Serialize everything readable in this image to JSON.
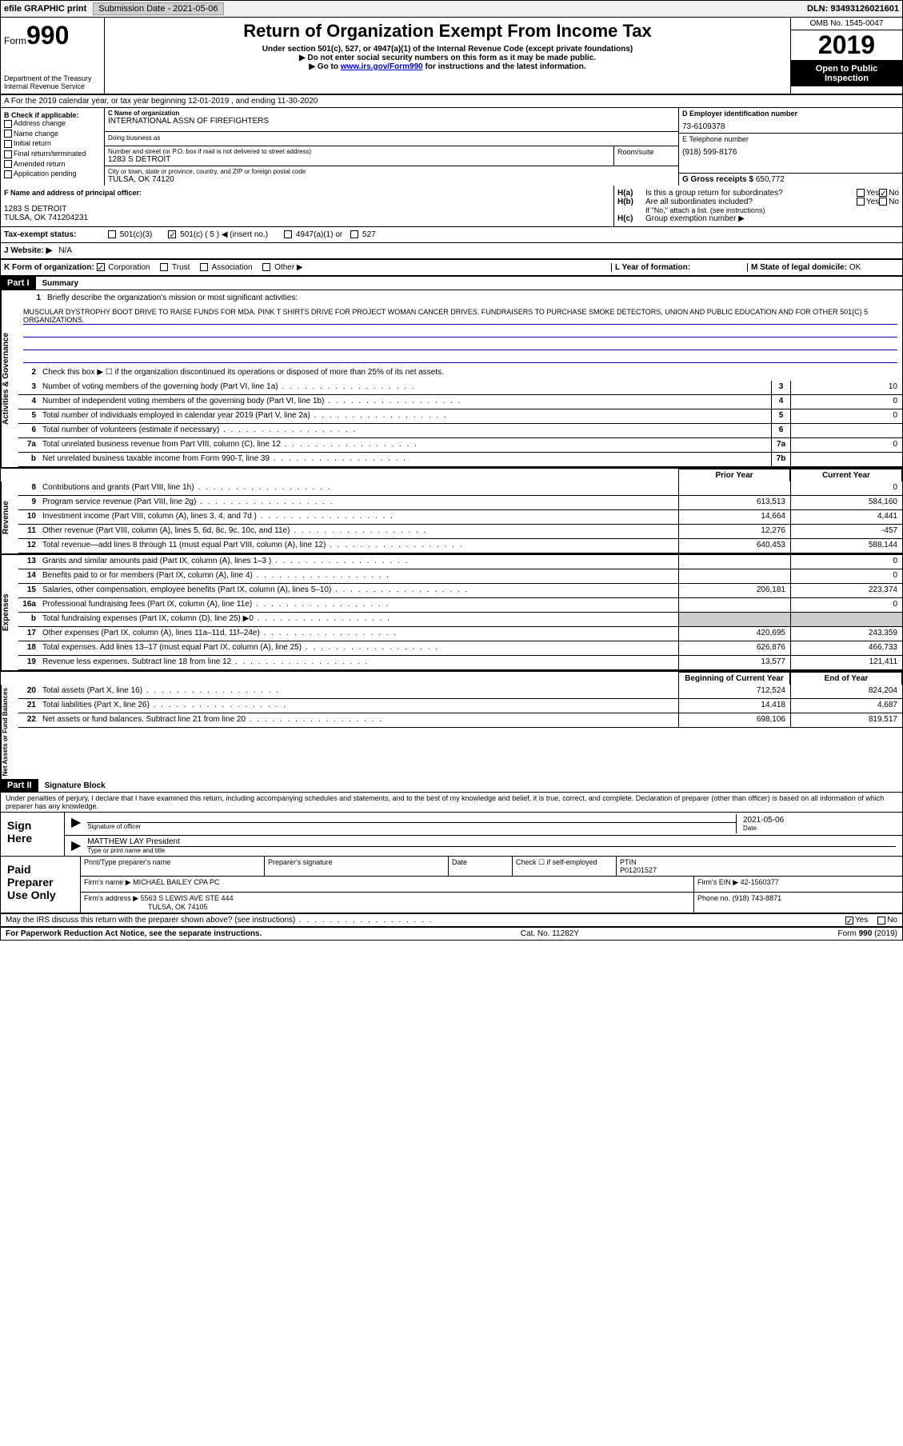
{
  "top": {
    "efile": "efile GRAPHIC print",
    "submission": "Submission Date - 2021-05-06",
    "dln": "DLN: 93493126021601"
  },
  "header": {
    "form_word": "Form",
    "form_num": "990",
    "dept": "Department of the Treasury\nInternal Revenue Service",
    "title": "Return of Organization Exempt From Income Tax",
    "sub1": "Under section 501(c), 527, or 4947(a)(1) of the Internal Revenue Code (except private foundations)",
    "sub2": "▶ Do not enter social security numbers on this form as it may be made public.",
    "sub3_pre": "▶ Go to ",
    "sub3_link": "www.irs.gov/Form990",
    "sub3_post": " for instructions and the latest information.",
    "omb": "OMB No. 1545-0047",
    "year": "2019",
    "open": "Open to Public Inspection"
  },
  "section_a": "A For the 2019 calendar year, or tax year beginning 12-01-2019   , and ending 11-30-2020",
  "b": {
    "lbl": "B Check if applicable:",
    "addr": "Address change",
    "name": "Name change",
    "init": "Initial return",
    "final": "Final return/terminated",
    "amend": "Amended return",
    "app": "Application pending"
  },
  "c": {
    "name_lbl": "C Name of organization",
    "name": "INTERNATIONAL ASSN OF FIREFIGHTERS",
    "dba_lbl": "Doing business as",
    "street_lbl": "Number and street (or P.O. box if mail is not delivered to street address)",
    "street": "1283 S DETROIT",
    "room_lbl": "Room/suite",
    "city_lbl": "City or town, state or province, country, and ZIP or foreign postal code",
    "city": "TULSA, OK  74120"
  },
  "d": {
    "lbl": "D Employer identification number",
    "val": "73-6109378"
  },
  "e": {
    "lbl": "E Telephone number",
    "val": "(918) 599-8176"
  },
  "g": {
    "lbl": "G Gross receipts $",
    "val": "650,772"
  },
  "f": {
    "lbl": "F Name and address of principal officer:",
    "addr1": "1283 S DETROIT",
    "addr2": "TULSA, OK  741204231"
  },
  "h": {
    "ha": "Is this a group return for subordinates?",
    "hb": "Are all subordinates included?",
    "hb_note": "If \"No,\" attach a list. (see instructions)",
    "hc": "Group exemption number ▶",
    "yes": "Yes",
    "no": "No"
  },
  "i": {
    "lbl": "Tax-exempt status:",
    "o1": "501(c)(3)",
    "o2": "501(c) ( 5 ) ◀ (insert no.)",
    "o3": "4947(a)(1) or",
    "o4": "527"
  },
  "j": {
    "lbl": "J  Website: ▶",
    "val": "N/A"
  },
  "k": {
    "lbl": "K Form of organization:",
    "corp": "Corporation",
    "trust": "Trust",
    "assoc": "Association",
    "other": "Other ▶"
  },
  "l": {
    "lbl": "L Year of formation:"
  },
  "m": {
    "lbl": "M State of legal domicile:",
    "val": "OK"
  },
  "part1": {
    "hdr": "Part I",
    "title": "Summary",
    "q1": "Briefly describe the organization's mission or most significant activities:",
    "mission": "MUSCULAR DYSTROPHY BOOT DRIVE TO RAISE FUNDS FOR MDA. PINK T SHIRTS DRIVE FOR PROJECT WOMAN CANCER DRIVES. FUNDRAISERS TO PURCHASE SMOKE DETECTORS, UNION AND PUBLIC EDUCATION AND FOR OTHER 501{C} 5 ORGANIZATIONS.",
    "q2": "Check this box ▶ ☐ if the organization discontinued its operations or disposed of more than 25% of its net assets.",
    "lines_gov": [
      {
        "n": "3",
        "t": "Number of voting members of the governing body (Part VI, line 1a)",
        "box": "3",
        "v": "10"
      },
      {
        "n": "4",
        "t": "Number of independent voting members of the governing body (Part VI, line 1b)",
        "box": "4",
        "v": "0"
      },
      {
        "n": "5",
        "t": "Total number of individuals employed in calendar year 2019 (Part V, line 2a)",
        "box": "5",
        "v": "0"
      },
      {
        "n": "6",
        "t": "Total number of volunteers (estimate if necessary)",
        "box": "6",
        "v": ""
      },
      {
        "n": "7a",
        "t": "Total unrelated business revenue from Part VIII, column (C), line 12",
        "box": "7a",
        "v": "0"
      },
      {
        "n": "b",
        "t": "Net unrelated business taxable income from Form 990-T, line 39",
        "box": "7b",
        "v": ""
      }
    ],
    "prior_hdr": "Prior Year",
    "curr_hdr": "Current Year",
    "lines_rev": [
      {
        "n": "8",
        "t": "Contributions and grants (Part VIII, line 1h)",
        "p": "",
        "c": "0"
      },
      {
        "n": "9",
        "t": "Program service revenue (Part VIII, line 2g)",
        "p": "613,513",
        "c": "584,160"
      },
      {
        "n": "10",
        "t": "Investment income (Part VIII, column (A), lines 3, 4, and 7d )",
        "p": "14,664",
        "c": "4,441"
      },
      {
        "n": "11",
        "t": "Other revenue (Part VIII, column (A), lines 5, 6d, 8c, 9c, 10c, and 11e)",
        "p": "12,276",
        "c": "-457"
      },
      {
        "n": "12",
        "t": "Total revenue—add lines 8 through 11 (must equal Part VIII, column (A), line 12)",
        "p": "640,453",
        "c": "588,144"
      }
    ],
    "lines_exp": [
      {
        "n": "13",
        "t": "Grants and similar amounts paid (Part IX, column (A), lines 1–3 )",
        "p": "",
        "c": "0"
      },
      {
        "n": "14",
        "t": "Benefits paid to or for members (Part IX, column (A), line 4)",
        "p": "",
        "c": "0"
      },
      {
        "n": "15",
        "t": "Salaries, other compensation, employee benefits (Part IX, column (A), lines 5–10)",
        "p": "206,181",
        "c": "223,374"
      },
      {
        "n": "16a",
        "t": "Professional fundraising fees (Part IX, column (A), line 11e)",
        "p": "",
        "c": "0"
      },
      {
        "n": "b",
        "t": "Total fundraising expenses (Part IX, column (D), line 25) ▶0",
        "p": "shaded",
        "c": "shaded"
      },
      {
        "n": "17",
        "t": "Other expenses (Part IX, column (A), lines 11a–11d, 11f–24e)",
        "p": "420,695",
        "c": "243,359"
      },
      {
        "n": "18",
        "t": "Total expenses. Add lines 13–17 (must equal Part IX, column (A), line 25)",
        "p": "626,876",
        "c": "466,733"
      },
      {
        "n": "19",
        "t": "Revenue less expenses. Subtract line 18 from line 12",
        "p": "13,577",
        "c": "121,411"
      }
    ],
    "begin_hdr": "Beginning of Current Year",
    "end_hdr": "End of Year",
    "lines_net": [
      {
        "n": "20",
        "t": "Total assets (Part X, line 16)",
        "p": "712,524",
        "c": "824,204"
      },
      {
        "n": "21",
        "t": "Total liabilities (Part X, line 26)",
        "p": "14,418",
        "c": "4,687"
      },
      {
        "n": "22",
        "t": "Net assets or fund balances. Subtract line 21 from line 20",
        "p": "698,106",
        "c": "819,517"
      }
    ],
    "side_gov": "Activities & Governance",
    "side_rev": "Revenue",
    "side_exp": "Expenses",
    "side_net": "Net Assets or Fund Balances"
  },
  "part2": {
    "hdr": "Part II",
    "title": "Signature Block",
    "decl": "Under penalties of perjury, I declare that I have examined this return, including accompanying schedules and statements, and to the best of my knowledge and belief, it is true, correct, and complete. Declaration of preparer (other than officer) is based on all information of which preparer has any knowledge.",
    "sign_here": "Sign Here",
    "sig_officer": "Signature of officer",
    "date_lbl": "Date",
    "date": "2021-05-06",
    "officer": "MATTHEW LAY President",
    "officer_lbl": "Type or print name and title",
    "paid": "Paid Preparer Use Only",
    "prep_name_lbl": "Print/Type preparer's name",
    "prep_sig_lbl": "Preparer's signature",
    "check_self": "Check ☐ if self-employed",
    "ptin_lbl": "PTIN",
    "ptin": "P01201527",
    "firm_name_lbl": "Firm's name   ▶",
    "firm_name": "MICHAEL BAILEY CPA PC",
    "firm_ein_lbl": "Firm's EIN ▶",
    "firm_ein": "42-1560377",
    "firm_addr_lbl": "Firm's address ▶",
    "firm_addr1": "5563 S LEWIS AVE STE 444",
    "firm_addr2": "TULSA, OK  74105",
    "phone_lbl": "Phone no.",
    "phone": "(918) 743-8871",
    "discuss": "May the IRS discuss this return with the preparer shown above? (see instructions)"
  },
  "footer": {
    "left": "For Paperwork Reduction Act Notice, see the separate instructions.",
    "mid": "Cat. No. 11282Y",
    "right": "Form 990 (2019)"
  }
}
